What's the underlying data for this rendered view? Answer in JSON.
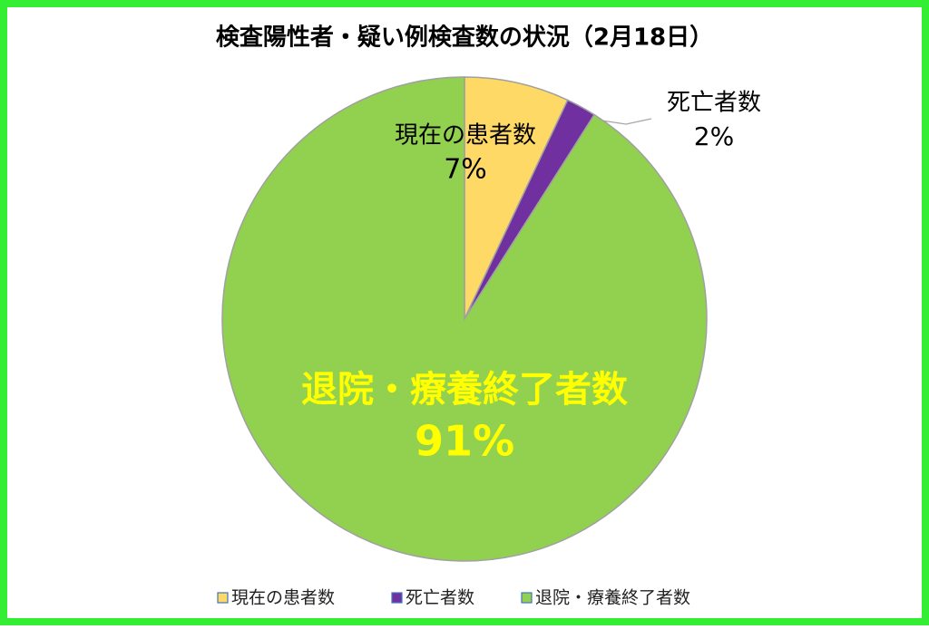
{
  "chart_data": {
    "type": "pie",
    "title": "検査陽性者・疑い例検査数の状況（2月18日）",
    "categories": [
      "現在の患者数",
      "死亡者数",
      "退院・療養終了者数"
    ],
    "values": [
      7,
      2,
      91
    ],
    "value_labels": [
      "7%",
      "2%",
      "91%"
    ],
    "colors": [
      "#ffd966",
      "#7030a0",
      "#92d050"
    ],
    "label_colors": [
      "#000000",
      "#000000",
      "#ffff00"
    ],
    "legend": "bottom"
  }
}
